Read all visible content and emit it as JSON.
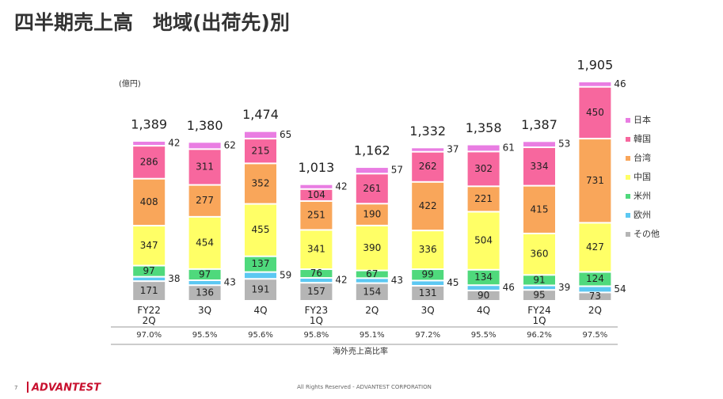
{
  "chart_data": {
    "type": "stacked_bar",
    "title": "四半期売上高　地域(出荷先)別",
    "unit_label": "(億円)",
    "categories": [
      "FY22\n2Q",
      "3Q",
      "4Q",
      "FY23\n1Q",
      "2Q",
      "3Q",
      "4Q",
      "FY24\n1Q",
      "2Q"
    ],
    "series": [
      {
        "name": "その他",
        "color": "#b5b5b5",
        "values": [
          171,
          136,
          191,
          157,
          154,
          131,
          90,
          95,
          73
        ]
      },
      {
        "name": "欧州",
        "color": "#5cc8f2",
        "labels_outside": true,
        "values": [
          38,
          43,
          59,
          42,
          43,
          45,
          46,
          39,
          54
        ]
      },
      {
        "name": "米州",
        "color": "#4fd97c",
        "values": [
          97,
          97,
          137,
          76,
          67,
          99,
          134,
          91,
          124
        ]
      },
      {
        "name": "中国",
        "color": "#ffff66",
        "values": [
          347,
          454,
          455,
          341,
          390,
          336,
          504,
          360,
          427
        ]
      },
      {
        "name": "台湾",
        "color": "#f9a65a",
        "values": [
          408,
          277,
          352,
          251,
          190,
          422,
          221,
          415,
          731
        ]
      },
      {
        "name": "韓国",
        "color": "#f7679e",
        "values": [
          286,
          311,
          215,
          104,
          261,
          262,
          302,
          334,
          450
        ]
      },
      {
        "name": "日本",
        "color": "#e97de2",
        "labels_outside": true,
        "values": [
          42,
          62,
          65,
          42,
          57,
          37,
          61,
          53,
          46
        ]
      }
    ],
    "totals": [
      1389,
      1380,
      1474,
      1013,
      1162,
      1332,
      1358,
      1387,
      1905
    ],
    "total_labels": [
      "1,389",
      "1,380",
      "1,474",
      "1,013",
      "1,162",
      "1,332",
      "1,358",
      "1,387",
      "1,905"
    ],
    "overseas_ratio": {
      "label": "海外売上高比率",
      "values": [
        97.0,
        95.5,
        95.6,
        95.8,
        95.1,
        97.2,
        95.5,
        96.2,
        97.5
      ],
      "value_labels": [
        "97.0%",
        "95.5%",
        "95.6%",
        "95.8%",
        "95.1%",
        "97.2%",
        "95.5%",
        "96.2%",
        "97.5%"
      ]
    },
    "legend": "right"
  },
  "footer": {
    "page": "7",
    "logo": "ADVANTEST",
    "copyright": "All Rights Reserved - ADVANTEST CORPORATION"
  }
}
